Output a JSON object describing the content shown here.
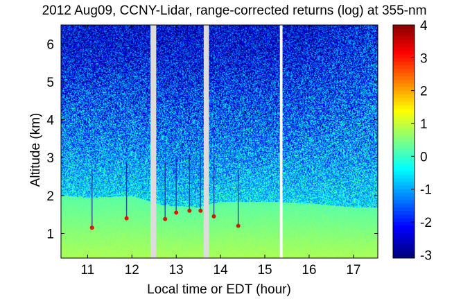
{
  "chart_data": {
    "type": "heatmap",
    "title": "2012 Aug09, CCNY-Lidar, range-corrected returns (log) at 355-nm",
    "xlabel": "Local time or EDT (hour)",
    "ylabel": "Altitude (km)",
    "xlim": [
      10.4,
      17.55
    ],
    "ylim": [
      0.35,
      6.5
    ],
    "xticks": [
      "11",
      "12",
      "13",
      "14",
      "15",
      "16",
      "17"
    ],
    "xtick_values": [
      11,
      12,
      13,
      14,
      15,
      16,
      17
    ],
    "yticks": [
      "1",
      "2",
      "3",
      "4",
      "5",
      "6"
    ],
    "ytick_values": [
      1,
      2,
      3,
      4,
      5,
      6
    ],
    "colorbar": {
      "colormap": "jet",
      "min": -3.1,
      "max": 4,
      "ticks": [
        "4",
        "3",
        "2",
        "1",
        "0",
        "-1",
        "-2",
        "-3"
      ],
      "tick_values": [
        4,
        3,
        2,
        1,
        0,
        -1,
        -2,
        -3
      ]
    },
    "data_gaps_hours": [
      [
        12.42,
        12.55
      ],
      [
        13.62,
        13.74
      ],
      [
        15.34,
        15.4
      ]
    ],
    "boundary_layer_top_km": [
      {
        "x": 10.5,
        "y": 2.0
      },
      {
        "x": 11.0,
        "y": 1.95
      },
      {
        "x": 12.0,
        "y": 2.0
      },
      {
        "x": 12.7,
        "y": 1.75
      },
      {
        "x": 13.5,
        "y": 1.7
      },
      {
        "x": 14.0,
        "y": 1.85
      },
      {
        "x": 15.0,
        "y": 1.85
      },
      {
        "x": 16.0,
        "y": 1.8
      },
      {
        "x": 17.0,
        "y": 1.7
      }
    ],
    "cloud_features": [
      {
        "x": 11.1,
        "y": 1.15
      },
      {
        "x": 11.88,
        "y": 1.4
      },
      {
        "x": 12.75,
        "y": 1.38
      },
      {
        "x": 13.0,
        "y": 1.55
      },
      {
        "x": 13.3,
        "y": 1.6
      },
      {
        "x": 13.55,
        "y": 1.6
      },
      {
        "x": 13.85,
        "y": 1.45
      },
      {
        "x": 14.4,
        "y": 1.2
      }
    ]
  }
}
